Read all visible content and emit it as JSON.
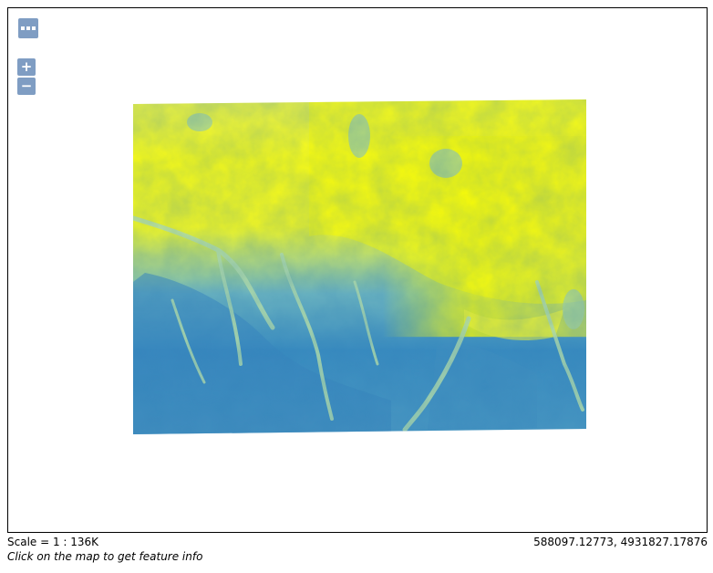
{
  "map": {
    "layer": "elevation-raster",
    "colors": {
      "low": "#3a8cc0",
      "mid": "#8fcdc4",
      "high": "#ffff00",
      "background": "#ffffff",
      "control": "#7a95bd"
    }
  },
  "controls": {
    "layer_switcher_icon": "ellipsis-icon",
    "zoom_in_label": "+",
    "zoom_out_label": "−"
  },
  "footer": {
    "scale": "Scale = 1 : 136K",
    "coordinates": "588097.12773, 4931827.17876",
    "info": "Click on the map to get feature info"
  }
}
